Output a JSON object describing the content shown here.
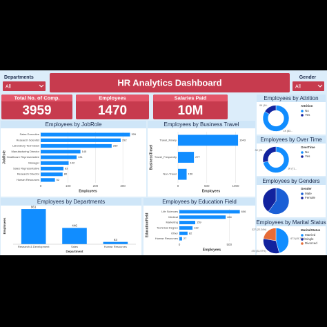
{
  "filters": [
    {
      "label": "Departments",
      "value": "All"
    },
    {
      "label": "Gender",
      "value": "All"
    }
  ],
  "header": {
    "title": "HR Analytics Dashboard"
  },
  "kpis": [
    {
      "label": "Total No. of Comp.",
      "value": "3959"
    },
    {
      "label": "Employees",
      "value": "1470"
    },
    {
      "label": "Salaries Paid",
      "value": "10M"
    }
  ],
  "chart_data": [
    {
      "type": "hbar",
      "title": "Employees by JobRole",
      "x_label": "Employees",
      "y_label": "JobRole",
      "categories": [
        "Sales Executive",
        "Research Scientist",
        "Laboratory Technician",
        "Manufacturing Director",
        "Healthcare Representative",
        "Manager",
        "Sales Representative",
        "Research Director",
        "Human Resources"
      ],
      "values": [
        326,
        292,
        259,
        145,
        131,
        102,
        83,
        80,
        52
      ],
      "color": "#118dff",
      "xlim": [
        0,
        345
      ],
      "xticks": [
        0,
        100,
        200,
        300
      ],
      "grid": true
    },
    {
      "type": "hbar",
      "title": "Employees by Business Travel",
      "x_label": "Employees",
      "y_label": "BusinessTravel",
      "categories": [
        "Travel_Rarely",
        "Travel_Frequently",
        "Non-Travel"
      ],
      "values": [
        1043,
        277,
        150
      ],
      "color": "#118dff",
      "xlim": [
        0,
        1150
      ],
      "xticks": [
        0,
        500,
        1000
      ],
      "grid": true
    },
    {
      "type": "bar",
      "title": "Employees by Departments",
      "x_label": "Department",
      "y_label": "Employees",
      "categories": [
        "Research & Development",
        "Sales",
        "Human Resources"
      ],
      "values": [
        961,
        446,
        63
      ],
      "color": "#118dff",
      "ylim": [
        0,
        1000
      ]
    },
    {
      "type": "hbar",
      "title": "Employees by Education Field",
      "x_label": "Employees",
      "y_label": "EducationField",
      "categories": [
        "Life Sciences",
        "Medical",
        "Marketing",
        "Technical Degree",
        "Other",
        "Human Resources"
      ],
      "values": [
        606,
        464,
        159,
        132,
        82,
        27
      ],
      "color": "#118dff",
      "xlim": [
        0,
        650
      ],
      "xticks": [
        0,
        500
      ],
      "grid": true
    },
    {
      "type": "donut",
      "title": "Employees by Attrition",
      "legend_title": "Attrition",
      "legend": "right",
      "categories": [
        "No",
        "Yes"
      ],
      "values": [
        1233,
        237
      ],
      "value_labels": [
        "1K (83...",
        "0K (16..."
      ],
      "colors": [
        "#118dff",
        "#12239e"
      ]
    },
    {
      "type": "donut",
      "title": "Employees by Over Time",
      "legend_title": "OverTime",
      "legend": "right",
      "categories": [
        "No",
        "Yes"
      ],
      "values": [
        1054,
        416
      ],
      "value_labels": [
        "1K (71...",
        "0K (28..."
      ],
      "colors": [
        "#118dff",
        "#12239e"
      ]
    },
    {
      "type": "pie",
      "title": "Employees by Genders",
      "legend_title": "Gender",
      "legend": "right",
      "categories": [
        "Male",
        "Female"
      ],
      "values": [
        882,
        588
      ],
      "colors": [
        "#1a5fd6",
        "#12239e"
      ]
    },
    {
      "type": "pie",
      "title": "Employees by Marital Status",
      "legend_title": "MaritalStatus",
      "legend": "right",
      "categories": [
        "Married",
        "Single",
        "Divorced"
      ],
      "values": [
        673,
        470,
        327
      ],
      "value_labels": [
        "673 (45.78%)",
        "470 (31.97%)",
        "327 (22.24%)"
      ],
      "colors": [
        "#118dff",
        "#12239e",
        "#e66c37"
      ]
    }
  ]
}
